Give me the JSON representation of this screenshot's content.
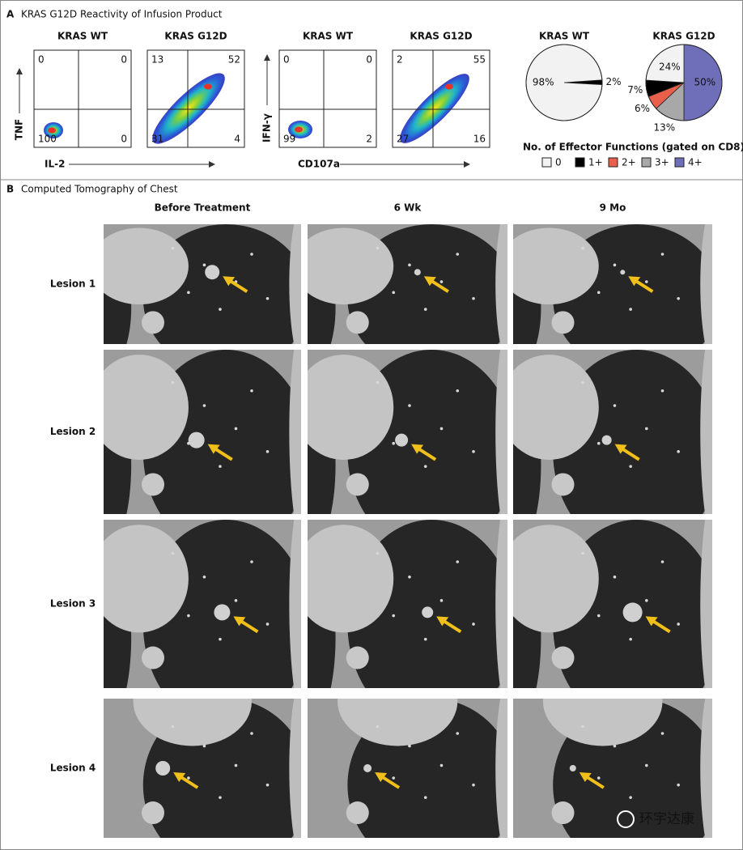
{
  "panel_a": {
    "label": "A",
    "title": "KRAS G12D Reactivity of Infusion Product",
    "axes": [
      {
        "x": "IL-2",
        "y": "TNF"
      },
      {
        "x": "CD107a",
        "y": "IFN-γ"
      }
    ],
    "flow_plots": [
      {
        "title": "KRAS WT",
        "quadrants": [
          0,
          0,
          100,
          0
        ]
      },
      {
        "title": "KRAS G12D",
        "quadrants": [
          13,
          52,
          31,
          4
        ]
      },
      {
        "title": "KRAS WT",
        "quadrants": [
          0,
          0,
          99,
          2
        ]
      },
      {
        "title": "KRAS G12D",
        "quadrants": [
          2,
          55,
          27,
          16
        ]
      }
    ]
  },
  "chart_data": [
    {
      "type": "pie",
      "title": "KRAS WT",
      "values": [
        98,
        2
      ],
      "value_labels": [
        "98%",
        "2%"
      ],
      "colors": [
        "#f2f2f2",
        "#000000"
      ]
    },
    {
      "type": "pie",
      "title": "KRAS G12D",
      "legend_title": "No. of Effector Functions (gated on CD8)",
      "categories": [
        "0",
        "1+",
        "2+",
        "3+",
        "4+"
      ],
      "colors": [
        "#f2f2f2",
        "#000000",
        "#e8604c",
        "#a8a8a8",
        "#6e6fb8"
      ],
      "values": [
        24,
        7,
        6,
        13,
        50
      ],
      "value_labels": [
        "24%",
        "7%",
        "6%",
        "13%",
        "50%"
      ]
    }
  ],
  "panel_b": {
    "label": "B",
    "title": "Computed Tomography of Chest",
    "columns": [
      "Before Treatment",
      "6 Wk",
      "9 Mo"
    ],
    "rows": [
      "Lesion 1",
      "Lesion 2",
      "Lesion 3",
      "Lesion 4"
    ]
  },
  "watermark": "环宇达康"
}
